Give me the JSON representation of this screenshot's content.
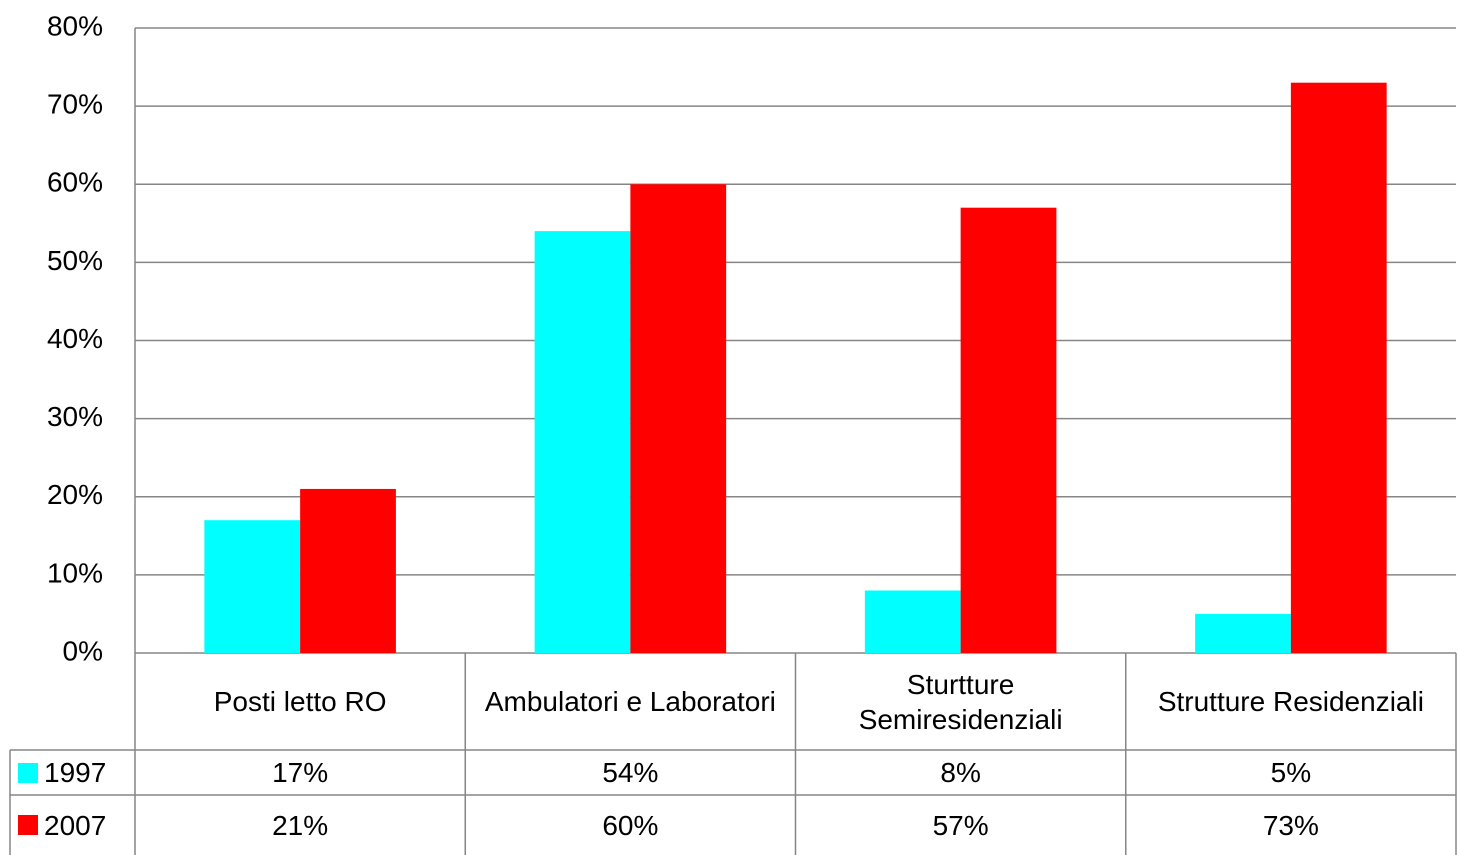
{
  "chart_data": {
    "type": "bar",
    "categories": [
      "Posti letto RO",
      "Ambulatori e Laboratori",
      "Sturtture Semiresidenziali",
      "Strutture Residenziali"
    ],
    "series": [
      {
        "name": "1997",
        "color": "#00ffff",
        "values": [
          17,
          54,
          8,
          5
        ],
        "value_labels": [
          "17%",
          "54%",
          "8%",
          "5%"
        ]
      },
      {
        "name": "2007",
        "color": "#ff0000",
        "values": [
          21,
          60,
          57,
          73
        ],
        "value_labels": [
          "21%",
          "60%",
          "57%",
          "73%"
        ]
      }
    ],
    "ylim": [
      0,
      80
    ],
    "yticks": [
      {
        "value": 0,
        "label": "0%"
      },
      {
        "value": 10,
        "label": "10%"
      },
      {
        "value": 20,
        "label": "20%"
      },
      {
        "value": 30,
        "label": "30%"
      },
      {
        "value": 40,
        "label": "40%"
      },
      {
        "value": 50,
        "label": "50%"
      },
      {
        "value": 60,
        "label": "60%"
      },
      {
        "value": 70,
        "label": "70%"
      },
      {
        "value": 80,
        "label": "80%"
      }
    ],
    "grid": true
  }
}
